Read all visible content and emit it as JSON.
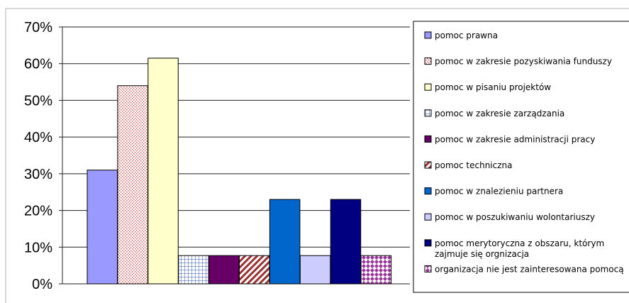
{
  "chart_data": {
    "type": "bar",
    "title": "",
    "xlabel": "",
    "ylabel": "",
    "ylim": [
      0,
      70
    ],
    "y_ticks": [
      "0%",
      "10%",
      "20%",
      "30%",
      "40%",
      "50%",
      "60%",
      "70%"
    ],
    "y_unit": "%",
    "grid": "horizontal",
    "legend_position": "right",
    "series": [
      {
        "name": "pomoc prawna",
        "value": 31,
        "color": "#9999ff",
        "pattern": "solid"
      },
      {
        "name": "pomoc w zakresie pozyskiwania funduszy",
        "value": 54,
        "color": "#cc6666",
        "pattern": "dots"
      },
      {
        "name": "pomoc w pisaniu projektów",
        "value": 61.5,
        "color": "#ffffcc",
        "pattern": "solid"
      },
      {
        "name": "pomoc w zakresie zarządzania",
        "value": 7.7,
        "color": "#3355aa",
        "pattern": "grid"
      },
      {
        "name": "pomoc w zakresie administracji pracy",
        "value": 7.7,
        "color": "#660066",
        "pattern": "solid"
      },
      {
        "name": "pomoc techniczna",
        "value": 7.7,
        "color": "#993333",
        "pattern": "diagonal"
      },
      {
        "name": "pomoc w znalezieniu partnera",
        "value": 23,
        "color": "#0066cc",
        "pattern": "solid"
      },
      {
        "name": "pomoc w poszukiwaniu wolontariuszy",
        "value": 7.7,
        "color": "#ccccff",
        "pattern": "solid"
      },
      {
        "name": "pomoc merytoryczna z obszaru, którym zajmuje się orgnizacja",
        "value": 23,
        "color": "#000080",
        "pattern": "solid"
      },
      {
        "name": "organizacja nie jest zainteresowana pomocą",
        "value": 7.7,
        "color": "#993399",
        "pattern": "diamond"
      }
    ]
  }
}
